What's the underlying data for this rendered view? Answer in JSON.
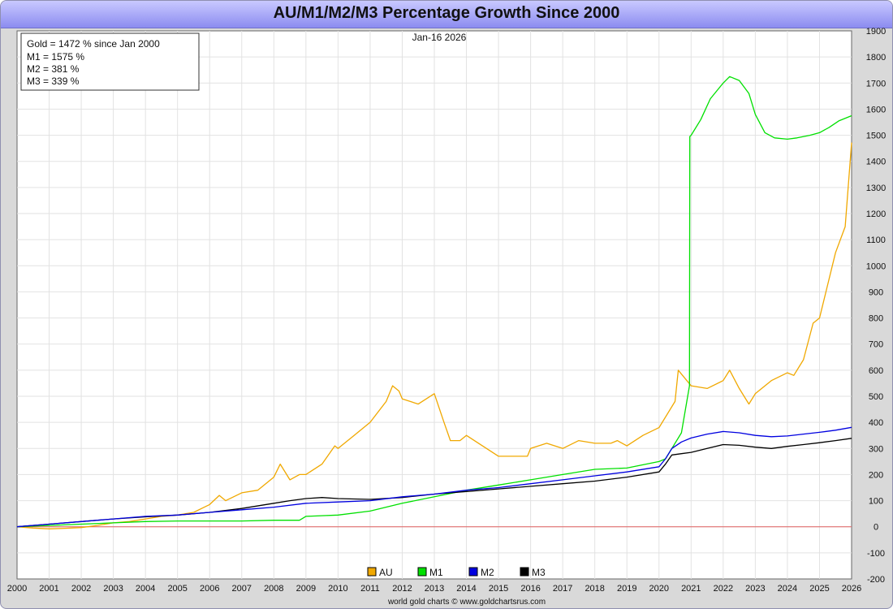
{
  "chart_data": {
    "type": "line",
    "title": "AU/M1/M2/M3 Percentage Growth Since 2000",
    "date_label": "Jan-16  2026",
    "credit": "world gold charts © www.goldchartsrus.com",
    "xlim": [
      2000,
      2026
    ],
    "ylim": [
      -200,
      1900
    ],
    "x_ticks": [
      "2000",
      "2001",
      "2002",
      "2003",
      "2004",
      "2005",
      "2006",
      "2007",
      "2008",
      "2009",
      "2010",
      "2011",
      "2012",
      "2013",
      "2014",
      "2015",
      "2016",
      "2017",
      "2018",
      "2019",
      "2020",
      "2021",
      "2022",
      "2023",
      "2024",
      "2025",
      "2026"
    ],
    "y_ticks": [
      "-200",
      "-100",
      "0",
      "100",
      "200",
      "300",
      "400",
      "500",
      "600",
      "700",
      "800",
      "900",
      "1000",
      "1100",
      "1200",
      "1300",
      "1400",
      "1500",
      "1600",
      "1700",
      "1800",
      "1900"
    ],
    "grid": true,
    "legend_position": "bottom-center",
    "info_box": [
      "Gold = 1472 % since Jan 2000",
      "M1 = 1575 %",
      "M2 = 381 %",
      "M3 = 339 %"
    ],
    "series": [
      {
        "name": "AU",
        "color": "#f0a800",
        "x": [
          2000.0,
          2000.5,
          2001.0,
          2001.5,
          2002.0,
          2002.5,
          2003.0,
          2003.5,
          2004.0,
          2004.5,
          2005.0,
          2005.5,
          2006.0,
          2006.3,
          2006.5,
          2007.0,
          2007.5,
          2008.0,
          2008.2,
          2008.5,
          2008.8,
          2009.0,
          2009.5,
          2009.9,
          2010.0,
          2010.5,
          2011.0,
          2011.5,
          2011.7,
          2011.9,
          2012.0,
          2012.5,
          2013.0,
          2013.3,
          2013.5,
          2013.8,
          2014.0,
          2014.5,
          2015.0,
          2015.5,
          2015.9,
          2016.0,
          2016.5,
          2017.0,
          2017.5,
          2018.0,
          2018.5,
          2018.7,
          2019.0,
          2019.5,
          2020.0,
          2020.5,
          2020.6,
          2021.0,
          2021.5,
          2022.0,
          2022.2,
          2022.5,
          2022.8,
          2023.0,
          2023.5,
          2024.0,
          2024.2,
          2024.5,
          2024.8,
          2025.0,
          2025.2,
          2025.5,
          2025.8,
          2026.0
        ],
        "values": [
          0,
          -5,
          -8,
          -6,
          -3,
          5,
          15,
          20,
          30,
          40,
          45,
          55,
          85,
          120,
          100,
          130,
          140,
          190,
          240,
          180,
          200,
          200,
          240,
          310,
          300,
          350,
          400,
          480,
          540,
          520,
          490,
          470,
          510,
          400,
          330,
          330,
          350,
          310,
          270,
          270,
          270,
          300,
          320,
          300,
          330,
          320,
          320,
          330,
          310,
          350,
          380,
          480,
          600,
          540,
          530,
          560,
          600,
          530,
          470,
          510,
          560,
          590,
          580,
          640,
          780,
          800,
          900,
          1050,
          1150,
          1472
        ],
        "label": "AU"
      },
      {
        "name": "M1",
        "color": "#00e000",
        "x": [
          2000.0,
          2001.0,
          2002.0,
          2003.0,
          2004.0,
          2005.0,
          2006.0,
          2007.0,
          2008.0,
          2008.8,
          2009.0,
          2010.0,
          2011.0,
          2012.0,
          2013.0,
          2014.0,
          2015.0,
          2016.0,
          2017.0,
          2018.0,
          2019.0,
          2020.0,
          2020.2,
          2020.4,
          2020.7,
          2020.95,
          2020.96,
          2021.0,
          2021.3,
          2021.6,
          2022.0,
          2022.2,
          2022.5,
          2022.8,
          2023.0,
          2023.3,
          2023.6,
          2024.0,
          2024.3,
          2024.7,
          2025.0,
          2025.3,
          2025.6,
          2026.0
        ],
        "values": [
          0,
          5,
          10,
          15,
          20,
          22,
          22,
          22,
          25,
          25,
          40,
          45,
          60,
          90,
          115,
          140,
          160,
          180,
          200,
          220,
          225,
          250,
          260,
          300,
          360,
          540,
          1495,
          1500,
          1560,
          1640,
          1700,
          1725,
          1710,
          1660,
          1580,
          1510,
          1490,
          1485,
          1490,
          1500,
          1510,
          1530,
          1555,
          1575
        ],
        "label": "M1"
      },
      {
        "name": "M2",
        "color": "#0000e0",
        "x": [
          2000.0,
          2001.0,
          2002.0,
          2003.0,
          2004.0,
          2005.0,
          2006.0,
          2007.0,
          2008.0,
          2009.0,
          2010.0,
          2011.0,
          2012.0,
          2013.0,
          2014.0,
          2015.0,
          2016.0,
          2017.0,
          2018.0,
          2019.0,
          2020.0,
          2020.2,
          2020.4,
          2020.7,
          2021.0,
          2021.5,
          2022.0,
          2022.5,
          2023.0,
          2023.5,
          2024.0,
          2024.5,
          2025.0,
          2025.5,
          2026.0
        ],
        "values": [
          0,
          10,
          20,
          30,
          40,
          45,
          55,
          65,
          75,
          90,
          95,
          100,
          115,
          125,
          140,
          150,
          165,
          180,
          195,
          210,
          230,
          260,
          300,
          325,
          340,
          355,
          365,
          360,
          350,
          345,
          348,
          355,
          362,
          370,
          381
        ],
        "label": "M2"
      },
      {
        "name": "M3",
        "color": "#000000",
        "x": [
          2000.0,
          2001.0,
          2002.0,
          2003.0,
          2004.0,
          2005.0,
          2006.0,
          2007.0,
          2008.0,
          2008.5,
          2009.0,
          2009.5,
          2010.0,
          2011.0,
          2012.0,
          2013.0,
          2014.0,
          2015.0,
          2016.0,
          2017.0,
          2018.0,
          2019.0,
          2020.0,
          2020.2,
          2020.4,
          2020.7,
          2021.0,
          2021.5,
          2022.0,
          2022.5,
          2023.0,
          2023.5,
          2024.0,
          2024.5,
          2025.0,
          2025.5,
          2026.0
        ],
        "values": [
          0,
          10,
          20,
          30,
          38,
          45,
          55,
          70,
          90,
          100,
          108,
          112,
          108,
          105,
          112,
          125,
          135,
          145,
          155,
          165,
          175,
          190,
          210,
          240,
          275,
          280,
          285,
          300,
          315,
          312,
          305,
          300,
          308,
          315,
          322,
          330,
          339
        ],
        "label": "M3"
      }
    ]
  }
}
